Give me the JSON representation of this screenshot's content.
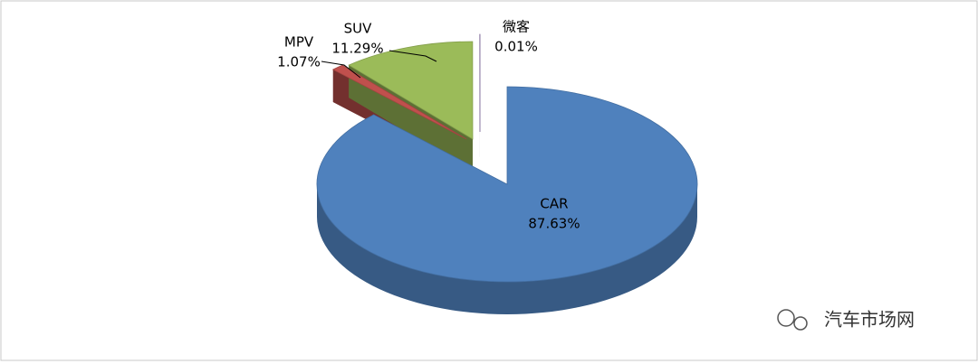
{
  "chart_data": {
    "type": "pie",
    "categories": [
      "CAR",
      "MPV",
      "SUV",
      "微客"
    ],
    "values": [
      87.63,
      1.07,
      11.29,
      0.01
    ],
    "value_labels": [
      "87.63%",
      "1.07%",
      "11.29%",
      "0.01%"
    ],
    "colors": [
      "#4f81bd",
      "#c0504d",
      "#9bbb59",
      "#8064a2"
    ],
    "watermark": "汽车市场网"
  }
}
